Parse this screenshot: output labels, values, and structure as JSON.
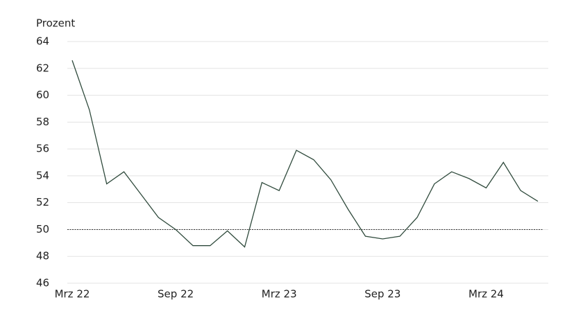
{
  "chart_data": {
    "type": "line",
    "y_axis_label": "Prozent",
    "categories": [
      "Mrz 22",
      null,
      null,
      null,
      null,
      null,
      "Sep 22",
      null,
      null,
      null,
      null,
      null,
      "Mrz 23",
      null,
      null,
      null,
      null,
      null,
      "Sep 23",
      null,
      null,
      null,
      null,
      null,
      "Mrz 24",
      null,
      null,
      null
    ],
    "series": [
      {
        "color": "#2f4a3c",
        "values": [
          62.6,
          58.9,
          53.4,
          54.3,
          52.6,
          50.9,
          50.0,
          48.8,
          48.8,
          49.9,
          48.7,
          53.5,
          52.9,
          55.9,
          55.2,
          53.7,
          51.5,
          49.5,
          49.3,
          49.5,
          50.9,
          53.4,
          54.3,
          53.8,
          53.1,
          55.0,
          52.9,
          52.1
        ]
      }
    ],
    "ylim": [
      46,
      64
    ],
    "yticks": [
      46,
      48,
      50,
      52,
      54,
      56,
      58,
      60,
      62,
      64
    ],
    "grid": true,
    "reference_line": 50
  }
}
